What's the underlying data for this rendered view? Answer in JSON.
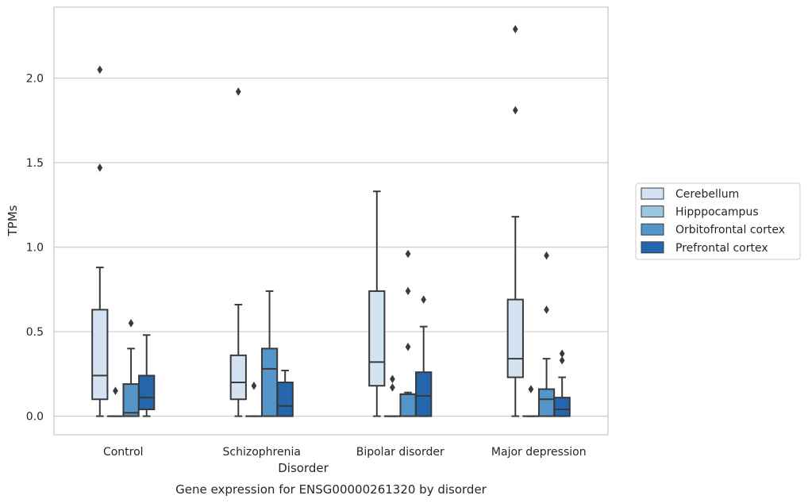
{
  "caption": "Gene expression for ENSG00000261320 by disorder",
  "chart_data": {
    "type": "box",
    "xlabel": "Disorder",
    "ylabel": "TPMs",
    "ylim": [
      -0.11,
      2.42
    ],
    "yticks": [
      0.0,
      0.5,
      1.0,
      1.5,
      2.0
    ],
    "ytick_labels": [
      "0.0",
      "0.5",
      "1.0",
      "1.5",
      "2.0"
    ],
    "grid": "horizontal",
    "legend_position": "right",
    "categories": [
      "Control",
      "Schizophrenia",
      "Bipolar disorder",
      "Major depression"
    ],
    "series": [
      {
        "name": "Cerebellum",
        "color": "#d3e3f2",
        "boxes": [
          {
            "min": 0.0,
            "q1": 0.1,
            "median": 0.24,
            "q3": 0.63,
            "max": 0.88,
            "outliers": [
              1.47,
              2.05
            ]
          },
          {
            "min": 0.0,
            "q1": 0.1,
            "median": 0.2,
            "q3": 0.36,
            "max": 0.66,
            "outliers": [
              1.92
            ]
          },
          {
            "min": 0.0,
            "q1": 0.18,
            "median": 0.32,
            "q3": 0.74,
            "max": 1.33,
            "outliers": []
          },
          {
            "min": 0.0,
            "q1": 0.23,
            "median": 0.34,
            "q3": 0.69,
            "max": 1.18,
            "outliers": [
              1.81,
              2.29
            ]
          }
        ]
      },
      {
        "name": "Hipppocampus",
        "color": "#9ac8e0",
        "boxes": [
          {
            "min": 0.0,
            "q1": 0.0,
            "median": 0.0,
            "q3": 0.0,
            "max": 0.0,
            "outliers": [
              0.15
            ]
          },
          {
            "min": 0.0,
            "q1": 0.0,
            "median": 0.0,
            "q3": 0.0,
            "max": 0.0,
            "outliers": [
              0.18
            ]
          },
          {
            "min": 0.0,
            "q1": 0.0,
            "median": 0.0,
            "q3": 0.0,
            "max": 0.0,
            "outliers": [
              0.17,
              0.22
            ]
          },
          {
            "min": 0.0,
            "q1": 0.0,
            "median": 0.0,
            "q3": 0.0,
            "max": 0.0,
            "outliers": [
              0.16
            ]
          }
        ]
      },
      {
        "name": "Orbitofrontal cortex",
        "color": "#5496c9",
        "boxes": [
          {
            "min": 0.0,
            "q1": 0.0,
            "median": 0.02,
            "q3": 0.19,
            "max": 0.4,
            "outliers": [
              0.55
            ]
          },
          {
            "min": 0.0,
            "q1": 0.0,
            "median": 0.28,
            "q3": 0.4,
            "max": 0.74,
            "outliers": []
          },
          {
            "min": 0.0,
            "q1": 0.0,
            "median": 0.13,
            "q3": 0.13,
            "max": 0.14,
            "outliers": [
              0.41,
              0.74,
              0.96
            ]
          },
          {
            "min": 0.0,
            "q1": 0.0,
            "median": 0.1,
            "q3": 0.16,
            "max": 0.34,
            "outliers": [
              0.63,
              0.95
            ]
          }
        ]
      },
      {
        "name": "Prefrontal cortex",
        "color": "#2466ad",
        "boxes": [
          {
            "min": 0.0,
            "q1": 0.04,
            "median": 0.11,
            "q3": 0.24,
            "max": 0.48,
            "outliers": []
          },
          {
            "min": 0.0,
            "q1": 0.0,
            "median": 0.06,
            "q3": 0.2,
            "max": 0.27,
            "outliers": []
          },
          {
            "min": 0.0,
            "q1": 0.0,
            "median": 0.12,
            "q3": 0.26,
            "max": 0.53,
            "outliers": [
              0.69
            ]
          },
          {
            "min": 0.0,
            "q1": 0.0,
            "median": 0.04,
            "q3": 0.11,
            "max": 0.23,
            "outliers": [
              0.33,
              0.37
            ]
          }
        ]
      }
    ]
  }
}
